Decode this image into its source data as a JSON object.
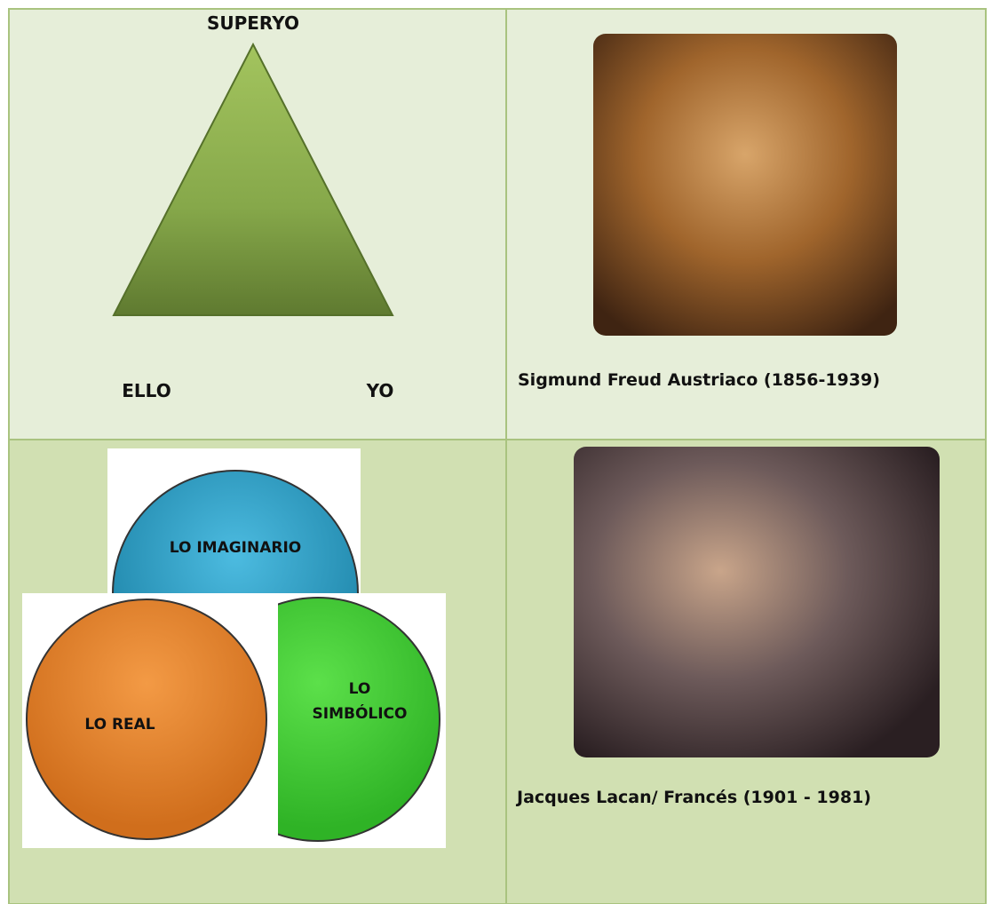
{
  "triangle": {
    "top": "SUPERYO",
    "left": "ELLO",
    "right": "YO"
  },
  "freud": {
    "caption": "Sigmund Freud  Austriaco (1856-1939)"
  },
  "circles": {
    "imaginary": "LO IMAGINARIO",
    "real": "LO REAL",
    "symbolic": [
      "LO",
      "SIMBÓLICO"
    ]
  },
  "lacan": {
    "caption": "Jacques Lacan/ Francés  (1901 - 1981)"
  }
}
